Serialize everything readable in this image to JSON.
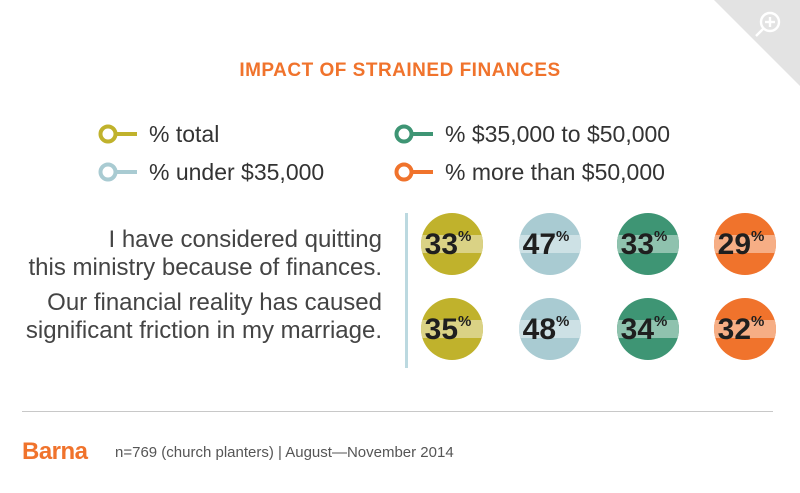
{
  "chart_data": {
    "type": "bubble-table",
    "title": "IMPACT OF STRAINED FINANCES",
    "unit": "%",
    "series": [
      {
        "name": "% total",
        "color": "#c0b22c"
      },
      {
        "name": "% under $35,000",
        "color": "#a9cbd2"
      },
      {
        "name": "% $35,000 to $50,000",
        "color": "#3e9574"
      },
      {
        "name": "% more than $50,000",
        "color": "#f0732c"
      }
    ],
    "rows": [
      {
        "lines": [
          "I have considered quitting",
          "this ministry because of finances."
        ],
        "values": [
          33,
          47,
          33,
          29
        ]
      },
      {
        "lines": [
          "Our financial reality has caused",
          "significant friction in my marriage."
        ],
        "values": [
          35,
          48,
          34,
          32
        ]
      }
    ]
  },
  "colors": {
    "title": "#f0732c",
    "brand": "#f0732c",
    "divider": "#bcd9e0"
  },
  "brand": "Barna",
  "footer": "n=769 (church planters) | August—November 2014",
  "zoom_icon": "zoom-in-icon"
}
